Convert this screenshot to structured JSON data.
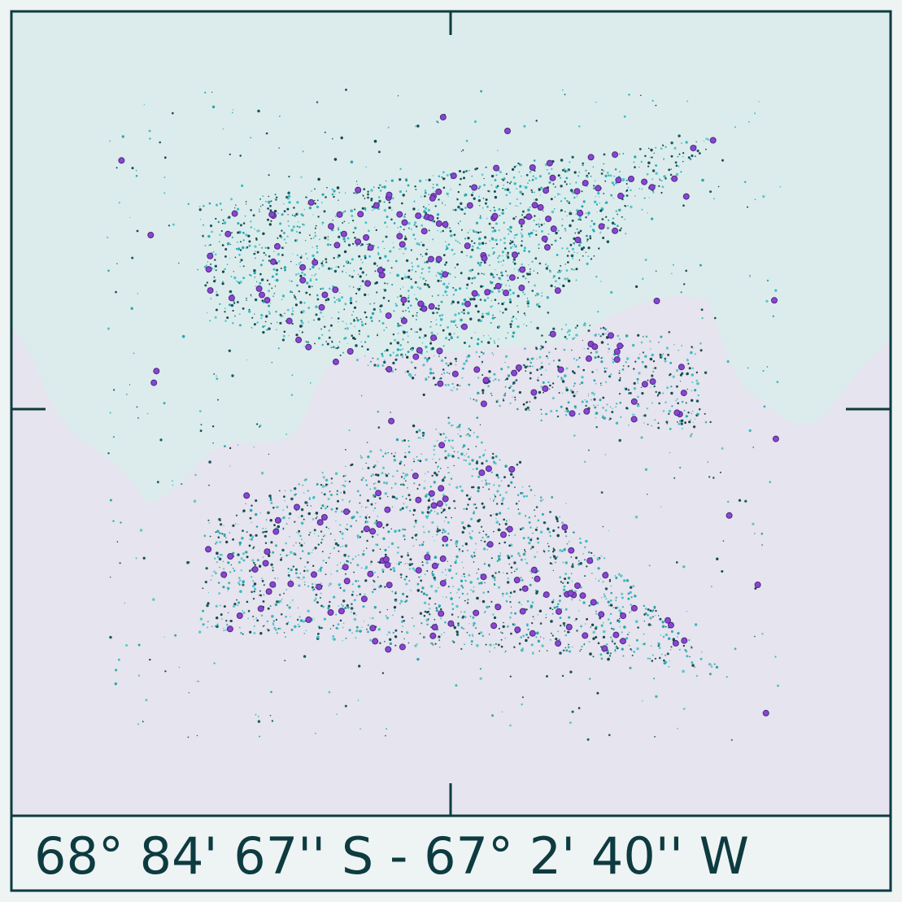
{
  "caption": {
    "coordinates": "68° 84' 67'' S - 67° 2' 40'' W"
  }
}
